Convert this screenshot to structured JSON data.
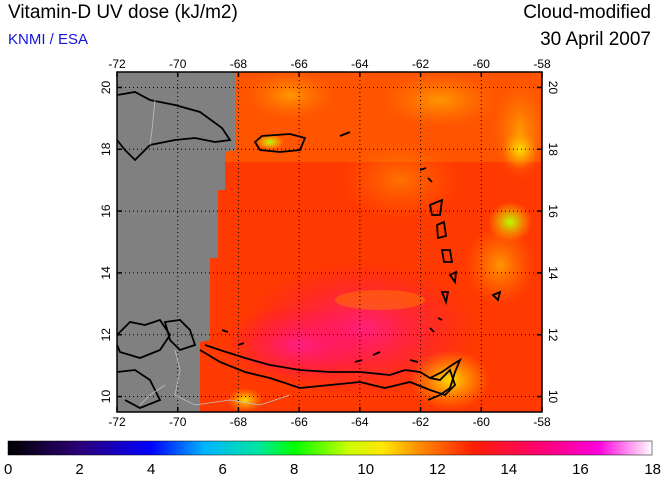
{
  "header": {
    "title": "Vitamin-D UV dose (kJ/m2)",
    "source": "KNMI / ESA",
    "product": "Cloud-modified",
    "date": "30 April 2007"
  },
  "map": {
    "lon_range": [
      -72,
      -58
    ],
    "lat_range": [
      9.5,
      20.5
    ],
    "lon_ticks": [
      -72,
      -70,
      -68,
      -66,
      -64,
      -62,
      -60,
      -58
    ],
    "lat_ticks": [
      10,
      12,
      14,
      16,
      18,
      20
    ],
    "no_data_color": "#808080",
    "grid": "dotted"
  },
  "colorbar": {
    "range": [
      0,
      18
    ],
    "ticks": [
      0,
      2,
      4,
      6,
      8,
      10,
      12,
      14,
      16,
      18
    ],
    "stops": [
      {
        "value": 0,
        "color": "#000000"
      },
      {
        "value": 2,
        "color": "#2d0078"
      },
      {
        "value": 4,
        "color": "#0000ff"
      },
      {
        "value": 5.5,
        "color": "#00b4ff"
      },
      {
        "value": 7,
        "color": "#00e6a0"
      },
      {
        "value": 8,
        "color": "#00ff00"
      },
      {
        "value": 9.5,
        "color": "#c8ff00"
      },
      {
        "value": 10.5,
        "color": "#ffe600"
      },
      {
        "value": 11.5,
        "color": "#ff8c00"
      },
      {
        "value": 13,
        "color": "#ff1e00"
      },
      {
        "value": 15,
        "color": "#ff0078"
      },
      {
        "value": 16.5,
        "color": "#ff00dc"
      },
      {
        "value": 18,
        "color": "#ffffff"
      }
    ]
  }
}
